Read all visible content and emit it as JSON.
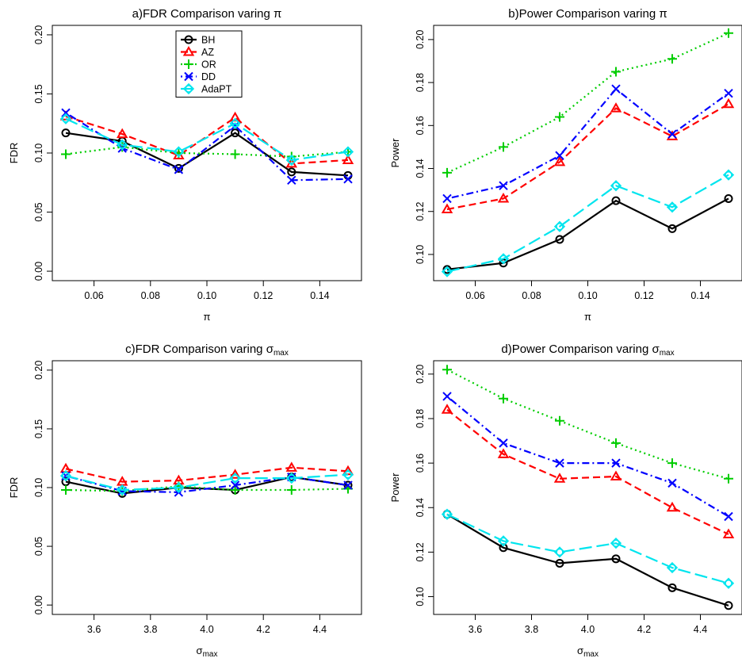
{
  "legend": {
    "entries": [
      {
        "label": "BH",
        "color": "#000000",
        "marker": "circle",
        "dash": "solid"
      },
      {
        "label": "AZ",
        "color": "#ff0000",
        "marker": "triangle",
        "dash": "dashed"
      },
      {
        "label": "OR",
        "color": "#00cd00",
        "marker": "plus",
        "dash": "dotted"
      },
      {
        "label": "DD",
        "color": "#0000ff",
        "marker": "cross",
        "dash": "dotdash"
      },
      {
        "label": "AdaPT",
        "color": "#00e5ee",
        "marker": "diamond-circle",
        "dash": "longdash"
      }
    ]
  },
  "chart_data": [
    {
      "type": "line",
      "title_main": "a)FDR Comparison varing ",
      "title_symbol": "π",
      "title_sub": "",
      "xlabel_main": "π",
      "xlabel_sub": "",
      "ylabel": "FDR",
      "x": [
        0.05,
        0.07,
        0.09,
        0.11,
        0.13,
        0.15
      ],
      "xticks": [
        "0.06",
        "0.08",
        "0.10",
        "0.12",
        "0.14"
      ],
      "xtick_values": [
        0.06,
        0.08,
        0.1,
        0.12,
        0.14
      ],
      "xlim": [
        0.05,
        0.15
      ],
      "yticks": [
        "0.00",
        "0.05",
        "0.10",
        "0.15",
        "0.20"
      ],
      "ytick_values": [
        0.0,
        0.05,
        0.1,
        0.15,
        0.2
      ],
      "ylim": [
        -0.008,
        0.208
      ],
      "show_legend": true,
      "series": [
        {
          "name": "BH",
          "values": [
            0.117,
            0.11,
            0.087,
            0.117,
            0.084,
            0.081
          ]
        },
        {
          "name": "AZ",
          "values": [
            0.131,
            0.116,
            0.098,
            0.13,
            0.091,
            0.094
          ]
        },
        {
          "name": "OR",
          "values": [
            0.099,
            0.105,
            0.1,
            0.099,
            0.097,
            0.101
          ]
        },
        {
          "name": "DD",
          "values": [
            0.134,
            0.104,
            0.086,
            0.123,
            0.077,
            0.078
          ]
        },
        {
          "name": "AdaPT",
          "values": [
            0.129,
            0.107,
            0.101,
            0.125,
            0.094,
            0.101
          ]
        }
      ]
    },
    {
      "type": "line",
      "title_main": "b)Power Comparison varing ",
      "title_symbol": "π",
      "title_sub": "",
      "xlabel_main": "π",
      "xlabel_sub": "",
      "ylabel": "Power",
      "x": [
        0.05,
        0.07,
        0.09,
        0.11,
        0.13,
        0.15
      ],
      "xticks": [
        "0.06",
        "0.08",
        "0.10",
        "0.12",
        "0.14"
      ],
      "xtick_values": [
        0.06,
        0.08,
        0.1,
        0.12,
        0.14
      ],
      "xlim": [
        0.05,
        0.15
      ],
      "yticks": [
        "0.10",
        "0.12",
        "0.14",
        "0.16",
        "0.18",
        "0.20"
      ],
      "ytick_values": [
        0.1,
        0.12,
        0.14,
        0.16,
        0.18,
        0.2
      ],
      "ylim": [
        0.0878,
        0.2066
      ],
      "show_legend": false,
      "series": [
        {
          "name": "BH",
          "values": [
            0.093,
            0.096,
            0.107,
            0.125,
            0.112,
            0.126
          ]
        },
        {
          "name": "AZ",
          "values": [
            0.121,
            0.126,
            0.143,
            0.168,
            0.155,
            0.17
          ]
        },
        {
          "name": "OR",
          "values": [
            0.138,
            0.15,
            0.164,
            0.185,
            0.191,
            0.203
          ]
        },
        {
          "name": "DD",
          "values": [
            0.126,
            0.132,
            0.146,
            0.177,
            0.156,
            0.175
          ]
        },
        {
          "name": "AdaPT",
          "values": [
            0.092,
            0.098,
            0.113,
            0.132,
            0.122,
            0.137
          ]
        }
      ]
    },
    {
      "type": "line",
      "title_main": "c)FDR Comparison varing ",
      "title_symbol": "σ",
      "title_sub": "max",
      "xlabel_main": "σ",
      "xlabel_sub": "max",
      "ylabel": "FDR",
      "x": [
        3.5,
        3.7,
        3.9,
        4.1,
        4.3,
        4.5
      ],
      "xticks": [
        "3.6",
        "3.8",
        "4.0",
        "4.2",
        "4.4"
      ],
      "xtick_values": [
        3.6,
        3.8,
        4.0,
        4.2,
        4.4
      ],
      "xlim": [
        3.5,
        4.5
      ],
      "yticks": [
        "0.00",
        "0.05",
        "0.10",
        "0.15",
        "0.20"
      ],
      "ytick_values": [
        0.0,
        0.05,
        0.1,
        0.15,
        0.2
      ],
      "ylim": [
        -0.008,
        0.208
      ],
      "show_legend": false,
      "series": [
        {
          "name": "BH",
          "values": [
            0.105,
            0.095,
            0.1,
            0.098,
            0.109,
            0.102
          ]
        },
        {
          "name": "AZ",
          "values": [
            0.116,
            0.105,
            0.106,
            0.111,
            0.117,
            0.114
          ]
        },
        {
          "name": "OR",
          "values": [
            0.098,
            0.097,
            0.101,
            0.098,
            0.098,
            0.099
          ]
        },
        {
          "name": "DD",
          "values": [
            0.11,
            0.097,
            0.096,
            0.102,
            0.109,
            0.102
          ]
        },
        {
          "name": "AdaPT",
          "values": [
            0.11,
            0.098,
            0.1,
            0.108,
            0.108,
            0.111
          ]
        }
      ]
    },
    {
      "type": "line",
      "title_main": "d)Power Comparison varing ",
      "title_symbol": "σ",
      "title_sub": "max",
      "xlabel_main": "σ",
      "xlabel_sub": "max",
      "ylabel": "Power",
      "x": [
        3.5,
        3.7,
        3.9,
        4.1,
        4.3,
        4.5
      ],
      "xticks": [
        "3.6",
        "3.8",
        "4.0",
        "4.2",
        "4.4"
      ],
      "xtick_values": [
        3.6,
        3.8,
        4.0,
        4.2,
        4.4
      ],
      "xlim": [
        3.5,
        4.5
      ],
      "yticks": [
        "0.10",
        "0.12",
        "0.14",
        "0.16",
        "0.18",
        "0.20"
      ],
      "ytick_values": [
        0.1,
        0.12,
        0.14,
        0.16,
        0.18,
        0.2
      ],
      "ylim": [
        0.092,
        0.206
      ],
      "show_legend": false,
      "series": [
        {
          "name": "BH",
          "values": [
            0.137,
            0.122,
            0.115,
            0.117,
            0.104,
            0.096
          ]
        },
        {
          "name": "AZ",
          "values": [
            0.184,
            0.164,
            0.153,
            0.154,
            0.14,
            0.128
          ]
        },
        {
          "name": "OR",
          "values": [
            0.202,
            0.189,
            0.179,
            0.169,
            0.16,
            0.153
          ]
        },
        {
          "name": "DD",
          "values": [
            0.19,
            0.169,
            0.16,
            0.16,
            0.151,
            0.136
          ]
        },
        {
          "name": "AdaPT",
          "values": [
            0.137,
            0.125,
            0.12,
            0.124,
            0.113,
            0.106
          ]
        }
      ]
    }
  ]
}
